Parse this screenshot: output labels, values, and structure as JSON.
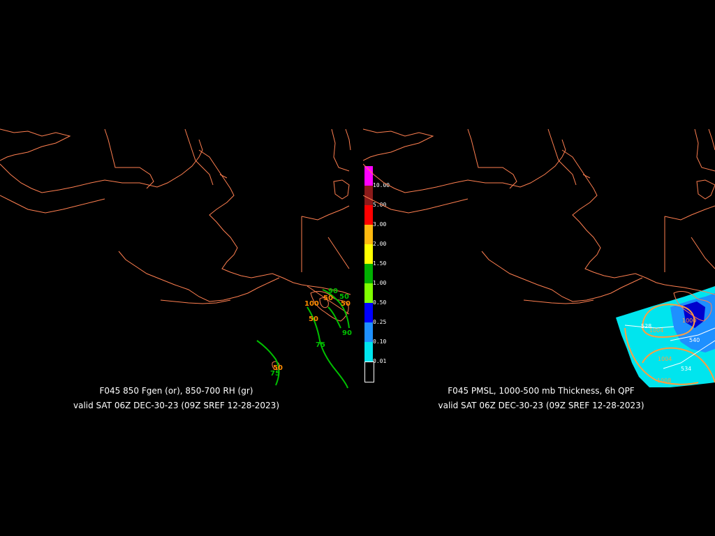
{
  "left_panel": {
    "caption_line1": "F045 850 Fgen (or), 850-700 RH (gr)",
    "caption_line2": "valid SAT 06Z DEC-30-23 (09Z SREF 12-28-2023)",
    "contour_labels_rh": [
      "75",
      "75",
      "90",
      "50",
      "90"
    ],
    "contour_labels_fgen": [
      "50",
      "50",
      "100",
      "50",
      "50"
    ]
  },
  "right_panel": {
    "caption_line1": "F045 PMSL, 1000-500 mb Thickness, 6h QPF",
    "caption_line2": "valid SAT 06Z DEC-30-23 (09Z SREF 12-28-2023)",
    "contour_labels": [
      "528",
      "1004",
      "540",
      "1004",
      "534",
      "1008",
      "1000"
    ]
  },
  "legend": {
    "items": [
      {
        "label": "10.00",
        "color": "#ff00ff"
      },
      {
        "label": "5.00",
        "color": "#8b1a1a"
      },
      {
        "label": "3.00",
        "color": "#ff0000"
      },
      {
        "label": "2.00",
        "color": "#ffb90f"
      },
      {
        "label": "1.50",
        "color": "#ffff00"
      },
      {
        "label": "1.00",
        "color": "#00b000"
      },
      {
        "label": "0.50",
        "color": "#7fff00"
      },
      {
        "label": "0.25",
        "color": "#0000ff"
      },
      {
        "label": "0.10",
        "color": "#1e90ff"
      },
      {
        "label": "0.01",
        "color": "#00e5ee"
      },
      {
        "label": "",
        "color": "#000000"
      }
    ]
  },
  "colors": {
    "coastline": "#ff7f50",
    "rh_contour": "#00c000",
    "fgen_contour": "#ff8c00",
    "qpf_light": "#00e5ee",
    "qpf_medium": "#1e90ff",
    "pmsl": "#ff9f40",
    "thickness": "#ffffff"
  }
}
